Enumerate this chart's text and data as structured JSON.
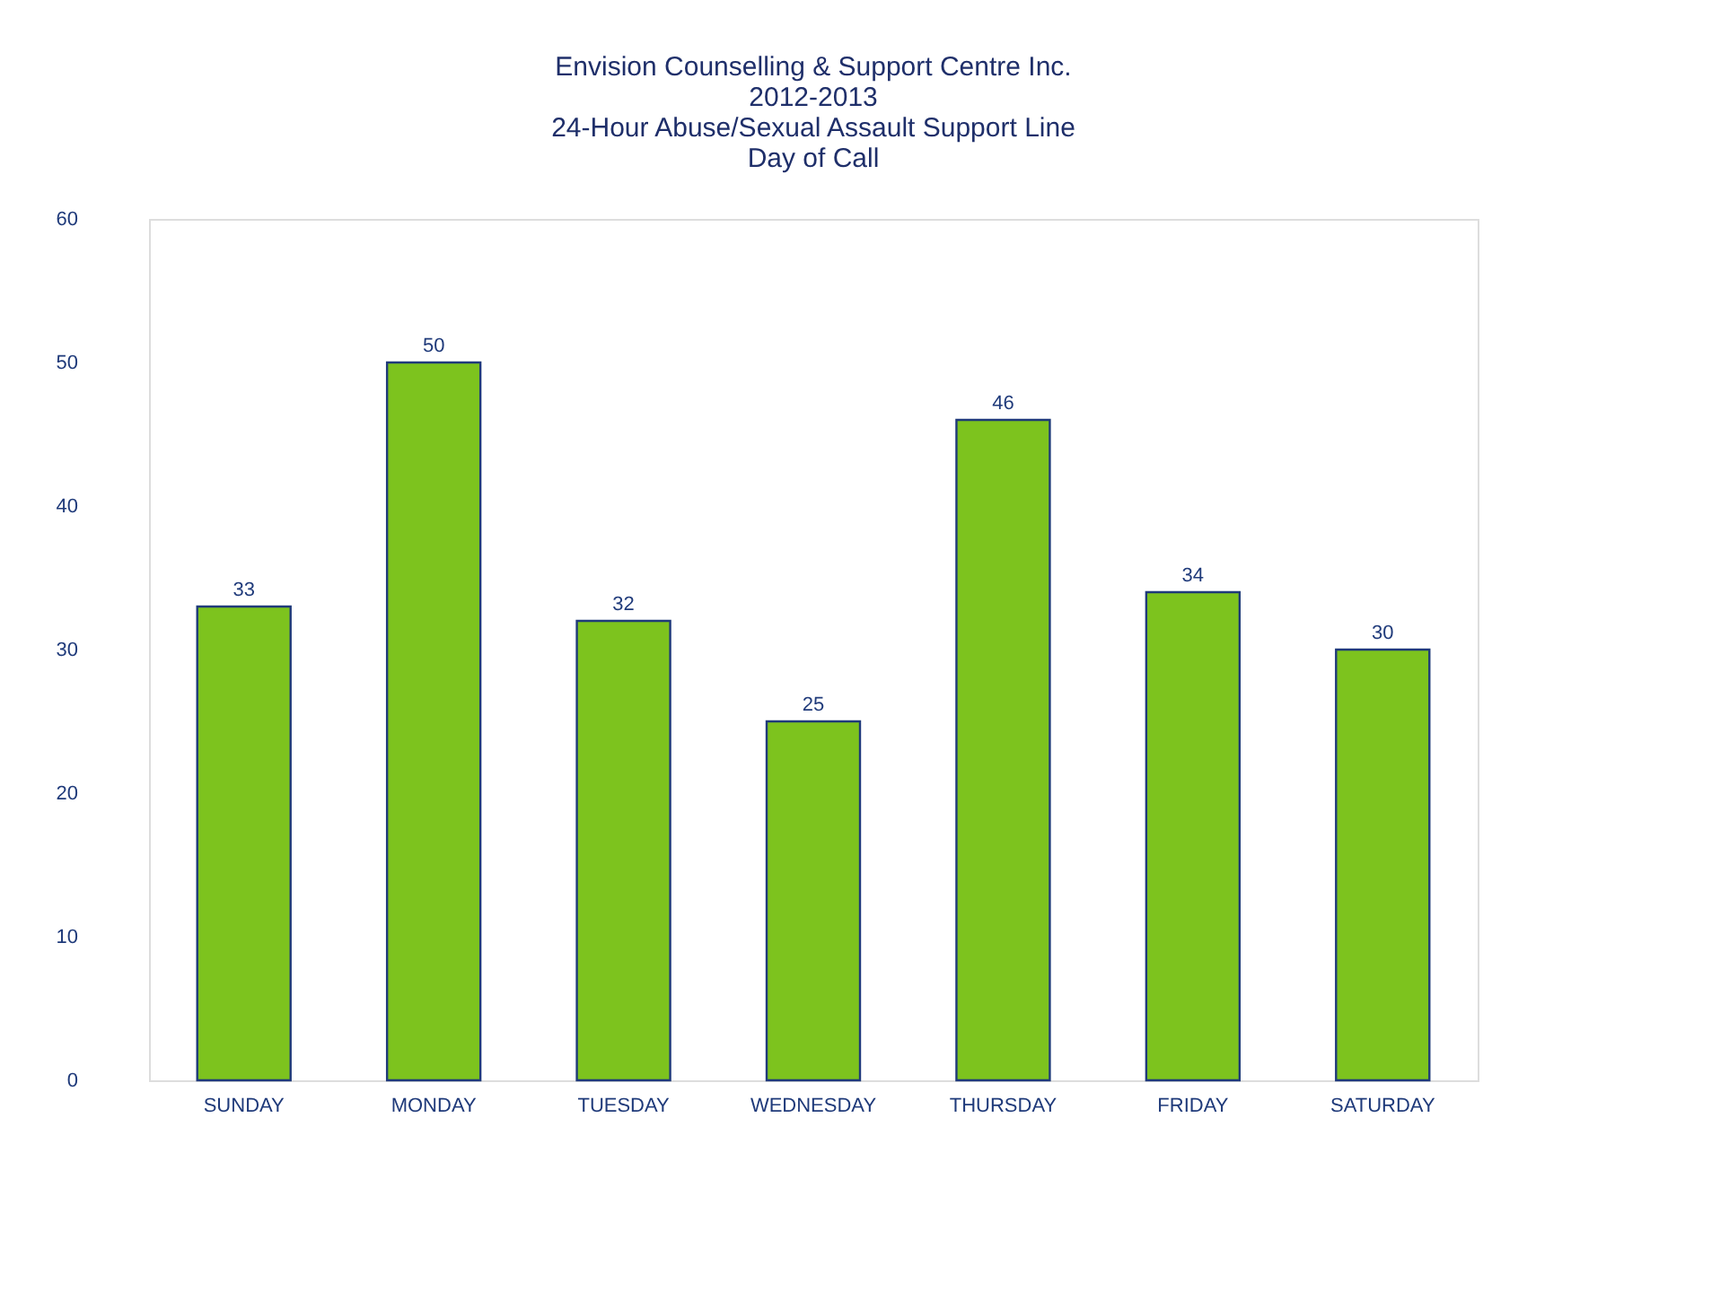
{
  "chart_data": {
    "type": "bar",
    "title": "Envision Counselling & Support Centre Inc.\n2012-2013\n24-Hour Abuse/Sexual Assault Support Line\nDay of Call",
    "categories": [
      "SUNDAY",
      "MONDAY",
      "TUESDAY",
      "WEDNESDAY",
      "THURSDAY",
      "FRIDAY",
      "SATURDAY"
    ],
    "values": [
      33,
      50,
      32,
      25,
      46,
      34,
      30
    ],
    "color": "#7dc31e",
    "ylim": [
      0,
      60
    ],
    "yticks": [
      0,
      10,
      20,
      30,
      40,
      50,
      60
    ],
    "grid": false,
    "data_labels": true
  }
}
